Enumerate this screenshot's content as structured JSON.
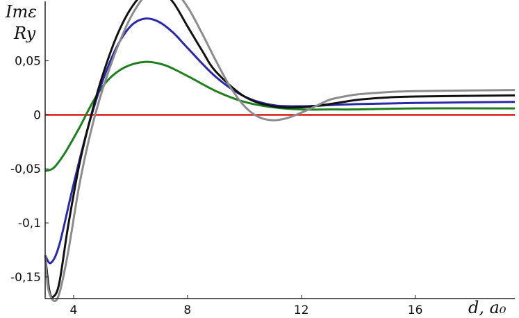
{
  "chart_data": {
    "type": "line",
    "title": "",
    "ylabel_line1": "Imε",
    "ylabel_line2": "Ry",
    "xlabel": "d, a₀",
    "xlim": [
      3,
      19.5
    ],
    "ylim": [
      -0.17,
      0.105
    ],
    "x_ticks": [
      4,
      8,
      12,
      16
    ],
    "x_tick_labels": [
      "4",
      "8",
      "12",
      "16"
    ],
    "y_ticks": [
      0.05,
      0,
      -0.05,
      -0.1,
      -0.15
    ],
    "y_tick_labels": [
      "0,05",
      "0",
      "-0,05",
      "-0,1",
      "-0,15"
    ],
    "grid": false,
    "series": [
      {
        "color": "#e02020",
        "x": [
          3,
          19.5
        ],
        "y": [
          0,
          0
        ]
      },
      {
        "color": "#1f7f1f",
        "x": [
          3,
          3.3,
          3.7,
          4.2,
          4.7,
          5.2,
          5.8,
          6.5,
          7.2,
          8.0,
          9.0,
          10.0,
          11.0,
          12.0,
          13.0,
          14.0,
          16.0,
          19.5
        ],
        "y": [
          -0.052,
          -0.049,
          -0.035,
          -0.012,
          0.013,
          0.032,
          0.044,
          0.049,
          0.046,
          0.036,
          0.022,
          0.012,
          0.007,
          0.005,
          0.005,
          0.005,
          0.006,
          0.006
        ]
      },
      {
        "color": "#2a2aa8",
        "x": [
          3,
          3.2,
          3.5,
          4.0,
          4.5,
          5.0,
          5.5,
          6.0,
          6.5,
          7.0,
          7.5,
          8.0,
          9.0,
          10.0,
          11.0,
          12.0,
          13.0,
          14.0,
          16.0,
          19.5
        ],
        "y": [
          -0.13,
          -0.137,
          -0.12,
          -0.064,
          -0.012,
          0.03,
          0.062,
          0.082,
          0.089,
          0.086,
          0.076,
          0.062,
          0.035,
          0.017,
          0.009,
          0.008,
          0.009,
          0.01,
          0.011,
          0.012
        ]
      },
      {
        "color": "#111111",
        "x": [
          3,
          3.15,
          3.3,
          3.5,
          3.8,
          4.2,
          4.6,
          5.0,
          5.5,
          6.0,
          6.5,
          7.0,
          7.5,
          8.0,
          8.5,
          9.0,
          10.0,
          11.0,
          12.0,
          13.0,
          14.0,
          15.0,
          16.0,
          19.5
        ],
        "y": [
          -0.13,
          -0.163,
          -0.168,
          -0.155,
          -0.104,
          -0.046,
          -0.002,
          0.035,
          0.072,
          0.098,
          0.113,
          0.116,
          0.104,
          0.082,
          0.06,
          0.04,
          0.017,
          0.008,
          0.007,
          0.01,
          0.014,
          0.016,
          0.017,
          0.018
        ]
      },
      {
        "color": "#8c8c8c",
        "x": [
          3,
          3.1,
          3.3,
          3.5,
          3.8,
          4.2,
          4.6,
          5.0,
          5.5,
          6.0,
          6.5,
          7.0,
          7.5,
          8.0,
          8.5,
          9.0,
          9.5,
          10.0,
          10.5,
          11.0,
          11.5,
          12.0,
          12.5,
          13.0,
          13.5,
          14.0,
          15.0,
          16.0,
          19.5
        ],
        "y": [
          -0.13,
          -0.16,
          -0.172,
          -0.165,
          -0.128,
          -0.065,
          -0.016,
          0.022,
          0.06,
          0.09,
          0.11,
          0.12,
          0.116,
          0.1,
          0.076,
          0.05,
          0.026,
          0.008,
          -0.002,
          -0.005,
          -0.003,
          0.002,
          0.008,
          0.014,
          0.017,
          0.019,
          0.021,
          0.022,
          0.023
        ]
      }
    ]
  }
}
